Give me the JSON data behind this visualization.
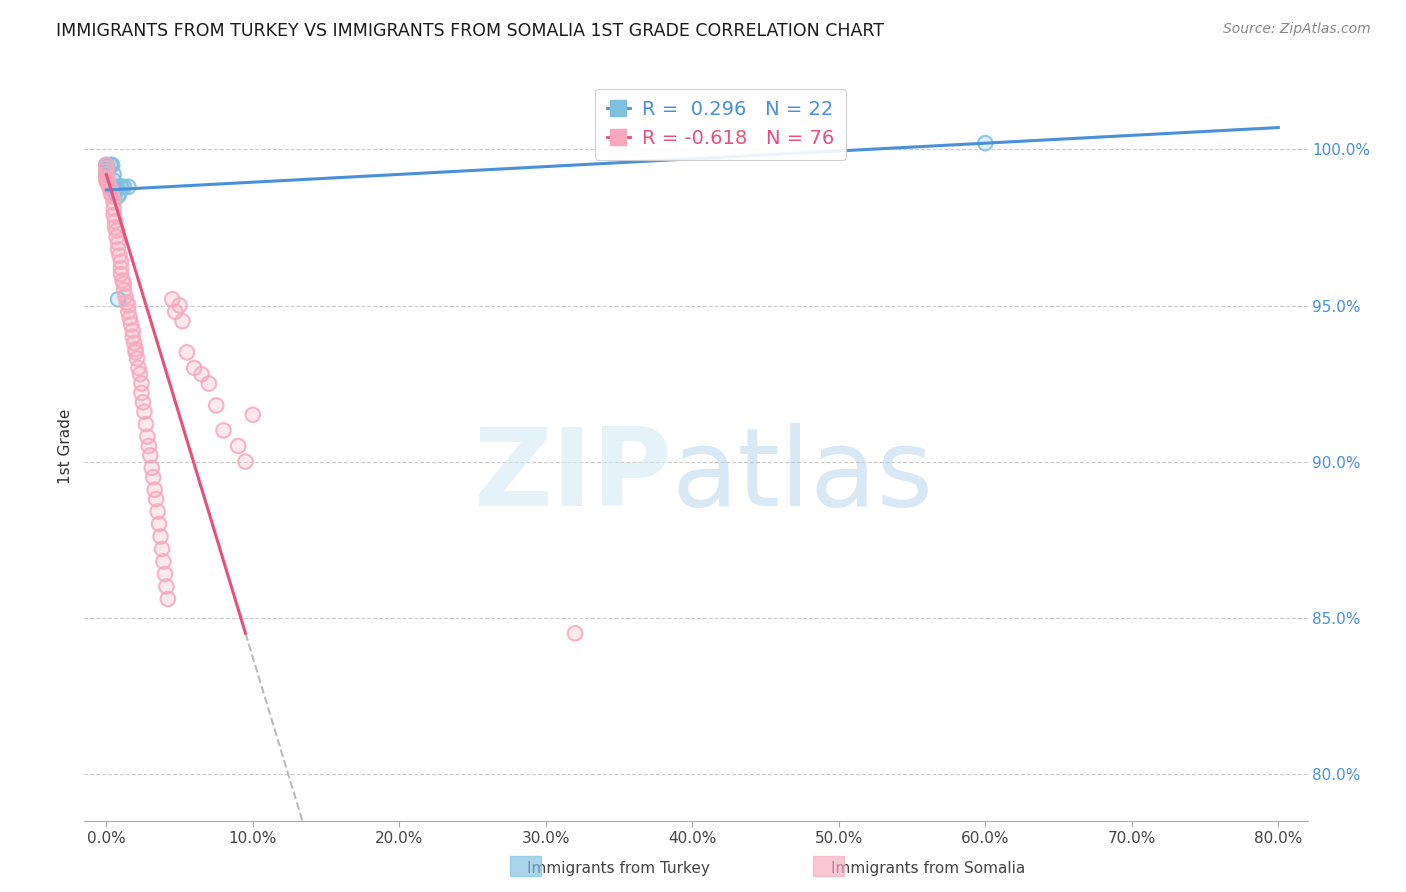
{
  "title": "IMMIGRANTS FROM TURKEY VS IMMIGRANTS FROM SOMALIA 1ST GRADE CORRELATION CHART",
  "source": "Source: ZipAtlas.com",
  "ylabel": "1st Grade",
  "right_yticks": [
    80.0,
    85.0,
    90.0,
    95.0,
    100.0
  ],
  "turkey_R": 0.296,
  "turkey_N": 22,
  "somalia_R": -0.618,
  "somalia_N": 76,
  "turkey_color": "#7fbfe0",
  "somalia_color": "#f7a8bc",
  "trend_turkey_color": "#4a90d9",
  "trend_somalia_color": "#e8507a",
  "turkey_scatter_x": [
    0.0,
    0.0,
    0.0,
    0.0,
    0.0,
    0.0,
    0.3,
    0.3,
    0.4,
    0.5,
    0.5,
    0.6,
    0.6,
    0.7,
    0.8,
    0.8,
    0.9,
    1.0,
    1.0,
    1.2,
    1.5,
    60.0
  ],
  "turkey_scatter_y": [
    99.5,
    99.5,
    99.4,
    99.3,
    99.3,
    99.2,
    99.5,
    99.5,
    99.5,
    99.2,
    99.0,
    98.7,
    98.6,
    98.8,
    98.5,
    95.2,
    98.6,
    98.8,
    98.8,
    98.8,
    98.8,
    100.2
  ],
  "somalia_scatter_x": [
    0.0,
    0.0,
    0.0,
    0.0,
    0.0,
    0.0,
    0.1,
    0.1,
    0.2,
    0.3,
    0.3,
    0.4,
    0.5,
    0.5,
    0.5,
    0.6,
    0.6,
    0.7,
    0.7,
    0.8,
    0.8,
    0.9,
    1.0,
    1.0,
    1.0,
    1.1,
    1.2,
    1.2,
    1.3,
    1.4,
    1.5,
    1.5,
    1.6,
    1.7,
    1.8,
    1.8,
    1.9,
    2.0,
    2.0,
    2.1,
    2.2,
    2.3,
    2.4,
    2.4,
    2.5,
    2.6,
    2.7,
    2.8,
    2.9,
    3.0,
    3.1,
    3.2,
    3.3,
    3.4,
    3.5,
    3.6,
    3.7,
    3.8,
    3.9,
    4.0,
    4.1,
    4.2,
    4.5,
    4.7,
    5.0,
    5.2,
    5.5,
    6.0,
    6.5,
    7.0,
    7.5,
    8.0,
    9.0,
    9.5,
    32.0,
    10.0
  ],
  "somalia_scatter_y": [
    99.5,
    99.4,
    99.3,
    99.2,
    99.1,
    99.0,
    99.0,
    98.9,
    98.8,
    98.7,
    98.6,
    98.5,
    98.3,
    98.1,
    97.9,
    97.7,
    97.5,
    97.4,
    97.2,
    97.0,
    96.8,
    96.6,
    96.4,
    96.2,
    96.0,
    95.8,
    95.7,
    95.5,
    95.3,
    95.1,
    95.0,
    94.8,
    94.6,
    94.4,
    94.2,
    94.0,
    93.8,
    93.6,
    93.5,
    93.3,
    93.0,
    92.8,
    92.5,
    92.2,
    91.9,
    91.6,
    91.2,
    90.8,
    90.5,
    90.2,
    89.8,
    89.5,
    89.1,
    88.8,
    88.4,
    88.0,
    87.6,
    87.2,
    86.8,
    86.4,
    86.0,
    85.6,
    95.2,
    94.8,
    95.0,
    94.5,
    93.5,
    93.0,
    92.8,
    92.5,
    91.8,
    91.0,
    90.5,
    90.0,
    84.5,
    91.5
  ],
  "xlim": [
    -1.5,
    82
  ],
  "ylim": [
    78.5,
    102.5
  ],
  "xtick_positions": [
    0,
    10,
    20,
    30,
    40,
    50,
    60,
    70,
    80
  ],
  "grid_color": "#cccccc",
  "background_color": "#ffffff"
}
